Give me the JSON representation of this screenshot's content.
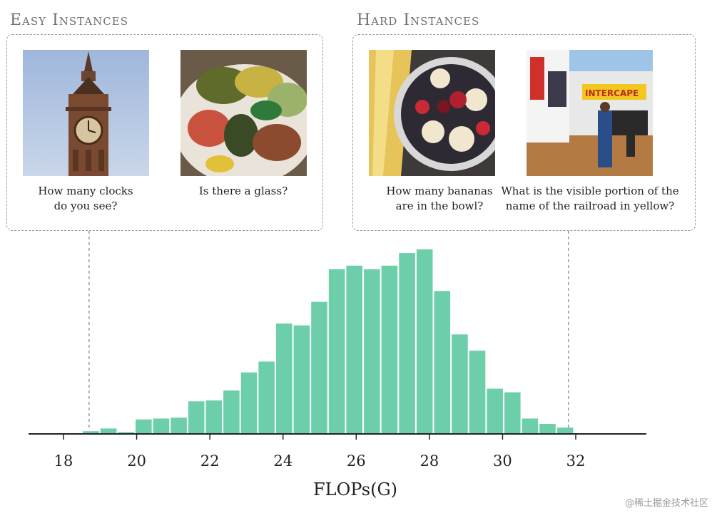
{
  "panels": {
    "easy": {
      "title": "Easy Instances",
      "examples": [
        {
          "image": "big-ben-clock-tower-photo",
          "question_lines": [
            "How many clocks",
            "do you see?"
          ]
        },
        {
          "image": "food-plate-photo",
          "question_lines": [
            "Is there a glass?"
          ]
        }
      ]
    },
    "hard": {
      "title": "Hard Instances",
      "examples": [
        {
          "image": "fruit-bowl-bananas-photo",
          "question_lines": [
            "How many bananas",
            "are in the bowl?"
          ]
        },
        {
          "image": "intercape-bus-photo",
          "question_lines": [
            "What is the visible portion of the",
            "name of the railroad in yellow?"
          ],
          "sign_text": "INTERCAPE"
        }
      ]
    }
  },
  "chart_data": {
    "type": "bar",
    "xlabel": "FLOPs(G)",
    "ylabel": "",
    "xlim": [
      17,
      34
    ],
    "ylim": [
      0,
      102
    ],
    "xticks": [
      18,
      20,
      22,
      24,
      26,
      28,
      30,
      32
    ],
    "bin_width": 0.48,
    "color": "#6dcfaa",
    "bins": [
      {
        "x": 18.75,
        "value": 1.5
      },
      {
        "x": 19.23,
        "value": 3
      },
      {
        "x": 19.71,
        "value": 1
      },
      {
        "x": 20.19,
        "value": 8
      },
      {
        "x": 20.67,
        "value": 8.5
      },
      {
        "x": 21.15,
        "value": 9
      },
      {
        "x": 21.63,
        "value": 18
      },
      {
        "x": 22.11,
        "value": 18.5
      },
      {
        "x": 22.59,
        "value": 24
      },
      {
        "x": 23.07,
        "value": 34
      },
      {
        "x": 23.55,
        "value": 40
      },
      {
        "x": 24.03,
        "value": 61
      },
      {
        "x": 24.51,
        "value": 60
      },
      {
        "x": 24.99,
        "value": 73
      },
      {
        "x": 25.47,
        "value": 91
      },
      {
        "x": 25.95,
        "value": 93
      },
      {
        "x": 26.43,
        "value": 91
      },
      {
        "x": 26.91,
        "value": 93
      },
      {
        "x": 27.39,
        "value": 100
      },
      {
        "x": 27.87,
        "value": 102
      },
      {
        "x": 28.35,
        "value": 79
      },
      {
        "x": 28.83,
        "value": 55
      },
      {
        "x": 29.31,
        "value": 46
      },
      {
        "x": 29.79,
        "value": 25
      },
      {
        "x": 30.27,
        "value": 23
      },
      {
        "x": 30.75,
        "value": 8.5
      },
      {
        "x": 31.23,
        "value": 5.5
      },
      {
        "x": 31.71,
        "value": 3.5
      }
    ],
    "markers": [
      {
        "name": "easy-instances",
        "x": 18.7
      },
      {
        "name": "hard-instances",
        "x": 31.8
      }
    ]
  },
  "watermark": "@稀土掘金技术社区"
}
